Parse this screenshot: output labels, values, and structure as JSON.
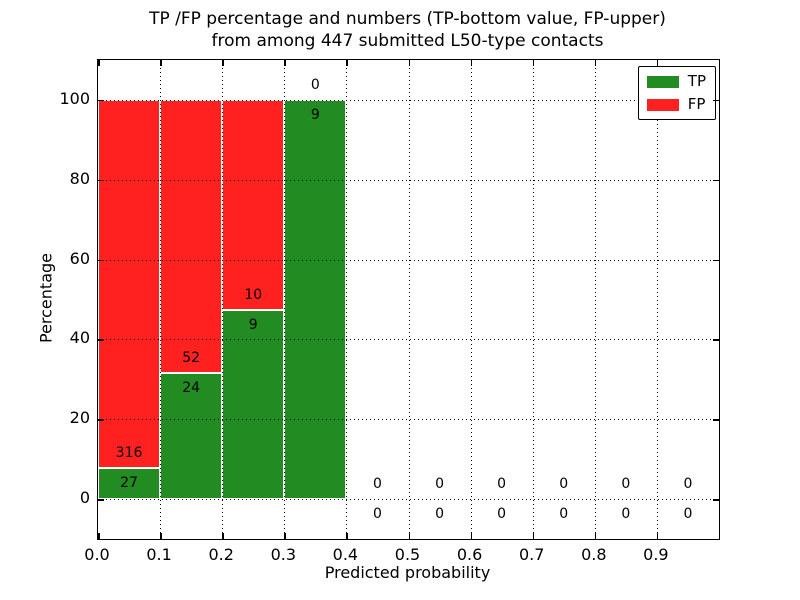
{
  "title": {
    "line1": "TP /FP percentage and numbers (TP-bottom value, FP-upper)",
    "line2": "from among 447 submitted L50-type contacts"
  },
  "chart_data": {
    "type": "bar",
    "stacked": true,
    "title": "TP /FP percentage and numbers (TP-bottom value, FP-upper) from among 447 submitted L50-type contacts",
    "xlabel": "Predicted probability",
    "ylabel": "Percentage",
    "total_contacts": 447,
    "xlim": [
      0.0,
      1.0
    ],
    "ylim": [
      -10,
      110
    ],
    "xtick_values": [
      0.0,
      0.1,
      0.2,
      0.3,
      0.4,
      0.5,
      0.6,
      0.7,
      0.8,
      0.9
    ],
    "xtick_labels": [
      "0.0",
      "0.1",
      "0.2",
      "0.3",
      "0.4",
      "0.5",
      "0.6",
      "0.7",
      "0.8",
      "0.9"
    ],
    "ytick_values": [
      0,
      20,
      40,
      60,
      80,
      100
    ],
    "ytick_labels": [
      "0",
      "20",
      "40",
      "60",
      "80",
      "100"
    ],
    "grid": {
      "style": "dotted",
      "color": "#000000",
      "over_bars": true
    },
    "legend": {
      "position": "upper-right",
      "entries": [
        {
          "label": "TP",
          "color": "#228b22"
        },
        {
          "label": "FP",
          "color": "#ff2020"
        }
      ]
    },
    "bins": [
      {
        "range": [
          0.0,
          0.1
        ],
        "tp_count": 27,
        "fp_count": 316,
        "tp_pct": 7.87,
        "fp_pct": 92.13
      },
      {
        "range": [
          0.1,
          0.2
        ],
        "tp_count": 24,
        "fp_count": 52,
        "tp_pct": 31.58,
        "fp_pct": 68.42
      },
      {
        "range": [
          0.2,
          0.3
        ],
        "tp_count": 9,
        "fp_count": 10,
        "tp_pct": 47.37,
        "fp_pct": 52.63
      },
      {
        "range": [
          0.3,
          0.4
        ],
        "tp_count": 9,
        "fp_count": 0,
        "tp_pct": 100,
        "fp_pct": 0
      },
      {
        "range": [
          0.4,
          0.5
        ],
        "tp_count": 0,
        "fp_count": 0,
        "tp_pct": 0,
        "fp_pct": 0
      },
      {
        "range": [
          0.5,
          0.6
        ],
        "tp_count": 0,
        "fp_count": 0,
        "tp_pct": 0,
        "fp_pct": 0
      },
      {
        "range": [
          0.6,
          0.7
        ],
        "tp_count": 0,
        "fp_count": 0,
        "tp_pct": 0,
        "fp_pct": 0
      },
      {
        "range": [
          0.7,
          0.8
        ],
        "tp_count": 0,
        "fp_count": 0,
        "tp_pct": 0,
        "fp_pct": 0
      },
      {
        "range": [
          0.8,
          0.9
        ],
        "tp_count": 0,
        "fp_count": 0,
        "tp_pct": 0,
        "fp_pct": 0
      },
      {
        "range": [
          0.9,
          1.0
        ],
        "tp_count": 0,
        "fp_count": 0,
        "tp_pct": 0,
        "fp_pct": 0
      }
    ]
  },
  "colors": {
    "tp": "#228b22",
    "fp": "#ff2020",
    "axes": "#000000",
    "background": "#ffffff"
  }
}
